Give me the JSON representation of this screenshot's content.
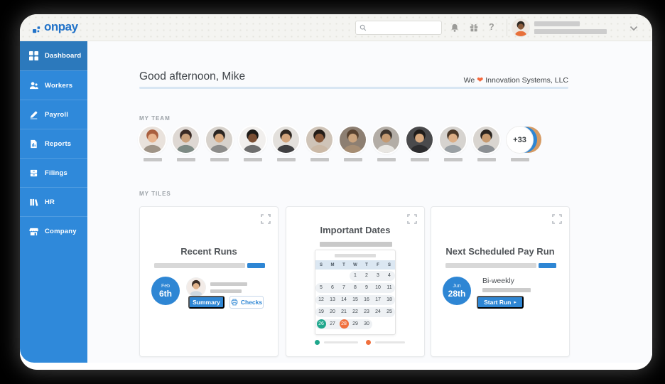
{
  "topbar": {
    "logo_text": "onpay",
    "search": {
      "placeholder": "",
      "value": ""
    },
    "help_glyph": "?",
    "user_avatar": {
      "bg": "#efe7e0",
      "hair": "#2c2620",
      "skin": "#8a5a3b",
      "shirt": "#e8703a"
    }
  },
  "sidebar": {
    "items": [
      {
        "label": "Dashboard",
        "active": true
      },
      {
        "label": "Workers",
        "active": false
      },
      {
        "label": "Payroll",
        "active": false
      },
      {
        "label": "Reports",
        "active": false
      },
      {
        "label": "Filings",
        "active": false
      },
      {
        "label": "HR",
        "active": false
      },
      {
        "label": "Company",
        "active": false
      }
    ]
  },
  "header": {
    "greeting": "Good afternoon, Mike",
    "company_prefix": "We",
    "company_heart": "❤",
    "company_name": "Innovation Systems, LLC"
  },
  "team": {
    "label": "MY TEAM",
    "member_count": 11,
    "overflow_label": "+33",
    "avatars": [
      {
        "bg": "#e9e2dc",
        "hair": "#a95f3f",
        "skin": "#e8b48e",
        "shirt": "#9f9487"
      },
      {
        "bg": "#ded8d3",
        "hair": "#3a2a24",
        "skin": "#caa07b",
        "shirt": "#7d8a84"
      },
      {
        "bg": "#d7d2cc",
        "hair": "#2b2622",
        "skin": "#d8a97f",
        "shirt": "#8c8c8a"
      },
      {
        "bg": "#f1efed",
        "hair": "#1d1a17",
        "skin": "#7a4e33",
        "shirt": "#6e6e6e"
      },
      {
        "bg": "#e3e0dc",
        "hair": "#2e2620",
        "skin": "#d2a47c",
        "shirt": "#3f3f41"
      },
      {
        "bg": "#cfc4b8",
        "hair": "#241d18",
        "skin": "#8a5a3b",
        "shirt": "#cbb9a6"
      },
      {
        "bg": "#8d7f72",
        "hair": "#57412f",
        "skin": "#caa37d",
        "shirt": "#a68d73"
      },
      {
        "bg": "#b3ada6",
        "hair": "#3c332c",
        "skin": "#c49a72",
        "shirt": "#e8e6e2"
      },
      {
        "bg": "#4a4a4c",
        "hair": "#1f1c1a",
        "skin": "#d7a87e",
        "shirt": "#2c2c2e"
      },
      {
        "bg": "#d6d3cf",
        "hair": "#4a3828",
        "skin": "#dcae85",
        "shirt": "#9aa0a4"
      },
      {
        "bg": "#d9d5d0",
        "hair": "#2a241f",
        "skin": "#c79a6f",
        "shirt": "#8b8f93"
      }
    ]
  },
  "tiles": {
    "label": "MY TILES",
    "recent_runs": {
      "title": "Recent Runs",
      "date_month": "Feb",
      "date_day": "6th",
      "summary_label": "Summary",
      "checks_label": "Checks",
      "avatar": {
        "bg": "#f2ebe7",
        "hair": "#3a2d26",
        "skin": "#e0b38c",
        "shirt": "#cfd8e0"
      }
    },
    "important_dates": {
      "title": "Important Dates",
      "calendar": {
        "day_headers": [
          "S",
          "M",
          "T",
          "W",
          "T",
          "F",
          "S"
        ],
        "weeks": [
          [
            "",
            "",
            "",
            "1",
            "2",
            "3",
            "4"
          ],
          [
            "5",
            "6",
            "7",
            "8",
            "9",
            "10",
            "11"
          ],
          [
            "12",
            "13",
            "14",
            "15",
            "16",
            "17",
            "18"
          ],
          [
            "19",
            "20",
            "21",
            "22",
            "23",
            "24",
            "25"
          ],
          [
            "26",
            "27",
            "28",
            "29",
            "30",
            "",
            ""
          ]
        ],
        "highlights": {
          "26": "#1fa78c",
          "28": "#f0703d"
        },
        "legend": [
          {
            "color": "#1fa78c"
          },
          {
            "color": "#f0703d"
          }
        ]
      }
    },
    "next_pay_run": {
      "title": "Next Scheduled Pay Run",
      "date_month": "Jun",
      "date_day": "28th",
      "frequency": "Bi-weekly",
      "start_label": "Start Run",
      "start_arrow": "▸"
    }
  },
  "colors": {
    "accent_blue": "#2e86d4",
    "sidebar_blue": "#2f89da",
    "sidebar_active_blue": "#2c79bc",
    "logo_blue": "#2273c9",
    "teal": "#1fa78c",
    "orange": "#f0703d",
    "heart_orange": "#f4683c",
    "badge_tan": "#d59a63"
  }
}
